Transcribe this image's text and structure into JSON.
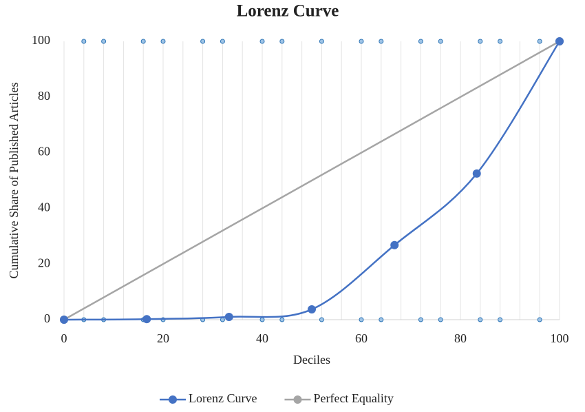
{
  "chart_data": {
    "type": "line",
    "title": "Lorenz Curve",
    "xlabel": "Deciles",
    "ylabel": "Cumulative Share of Published Articles",
    "xlim": [
      0,
      100
    ],
    "xticks": [
      0,
      20,
      40,
      60,
      80,
      100
    ],
    "ylim": [
      0,
      100
    ],
    "yticks": [
      0,
      20,
      40,
      60,
      80,
      100
    ],
    "xgrid": [
      4,
      8,
      12,
      16,
      20,
      24,
      28,
      32,
      36,
      40,
      44,
      48,
      52,
      56,
      60,
      64,
      68,
      72,
      76,
      80,
      84,
      88,
      92,
      96
    ],
    "legend": "bottom",
    "series": [
      {
        "name": "Lorenz Curve",
        "color": "#4472c4",
        "smooth": true,
        "marker_size": 6,
        "x": [
          0,
          16.7,
          33.3,
          50,
          66.7,
          83.3,
          100
        ],
        "values": [
          0,
          0.2,
          1,
          3.7,
          26.8,
          52.5,
          100
        ]
      },
      {
        "name": "Perfect Equality",
        "color": "#a5a5a5",
        "smooth": false,
        "marker_size": 6,
        "x": [
          0,
          100
        ],
        "values": [
          0,
          100
        ]
      },
      {
        "color": "#9dc3e6",
        "line": false,
        "marker_size": 3,
        "x": [
          4,
          8,
          16,
          20,
          28,
          32,
          40,
          44,
          52,
          60,
          64,
          72,
          76,
          84,
          88,
          96
        ],
        "values": [
          100,
          100,
          100,
          100,
          100,
          100,
          100,
          100,
          100,
          100,
          100,
          100,
          100,
          100,
          100,
          100
        ]
      },
      {
        "color": "#9dc3e6",
        "line": false,
        "marker_size": 3,
        "x": [
          4,
          8,
          16,
          20,
          28,
          32,
          40,
          44,
          52,
          60,
          64,
          72,
          76,
          84,
          88,
          96
        ],
        "values": [
          0,
          0,
          0,
          0,
          0,
          0,
          0,
          0,
          0,
          0,
          0,
          0,
          0,
          0,
          0,
          0
        ]
      }
    ]
  }
}
